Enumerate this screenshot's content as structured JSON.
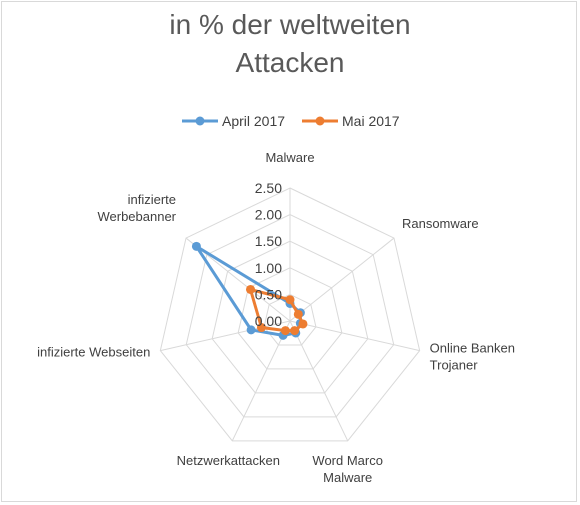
{
  "chart_data": {
    "type": "radar",
    "title_lines": [
      "in % der weltweiten",
      "Attacken"
    ],
    "categories": [
      [
        "Malware"
      ],
      [
        "Ransomware"
      ],
      [
        "Online Banken",
        "Trojaner"
      ],
      [
        "Word Marco",
        "Malware"
      ],
      [
        "Netzwerkattacken"
      ],
      [
        "infizierte Webseiten"
      ],
      [
        "infizierte",
        "Werbebanner"
      ]
    ],
    "rlim": [
      0,
      2.5
    ],
    "ticks": [
      "0.00",
      "0.50",
      "1.00",
      "1.50",
      "2.00",
      "2.50"
    ],
    "tick_values": [
      0,
      0.5,
      1.0,
      1.5,
      2.0,
      2.5
    ],
    "grid": true,
    "legend_position": "top",
    "series": [
      {
        "name": "April 2017",
        "color": "#5b9bd5",
        "values": [
          0.33,
          0.25,
          0.2,
          0.25,
          0.3,
          0.75,
          2.25
        ]
      },
      {
        "name": "Mai 2017",
        "color": "#ed7d31",
        "values": [
          0.4,
          0.2,
          0.25,
          0.2,
          0.2,
          0.55,
          0.95
        ]
      }
    ]
  }
}
